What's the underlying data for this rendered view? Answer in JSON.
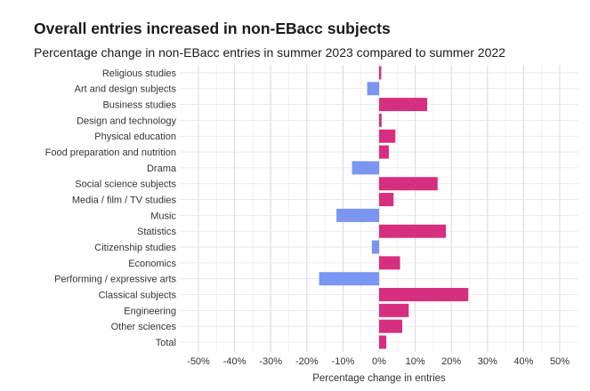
{
  "chart_data": {
    "type": "bar",
    "orientation": "horizontal",
    "title": "Overall entries increased in non-EBacc subjects",
    "subtitle": "Percentage change in non-EBacc entries in summer 2023 compared to summer 2022",
    "xlabel": "Percentage change in entries",
    "ylabel": "",
    "xlim": [
      -50,
      50
    ],
    "xticks": [
      -50,
      -40,
      -30,
      -20,
      -10,
      0,
      10,
      20,
      30,
      40,
      50
    ],
    "xtick_labels": [
      "-50%",
      "-40%",
      "-30%",
      "-20%",
      "-10%",
      "0%",
      "10%",
      "20%",
      "30%",
      "40%",
      "50%"
    ],
    "grid": true,
    "colors": {
      "positive": "#d62f7f",
      "negative": "#7b96f0"
    },
    "categories": [
      "Religious studies",
      "Art and design subjects",
      "Business studies",
      "Design and technology",
      "Physical education",
      "Food preparation and nutrition",
      "Drama",
      "Social science subjects",
      "Media / film / TV studies",
      "Music",
      "Statistics",
      "Citizenship studies",
      "Economics",
      "Performing / expressive arts",
      "Classical subjects",
      "Engineering",
      "Other sciences",
      "Total"
    ],
    "values": [
      0.6,
      -3.3,
      13.3,
      0.7,
      4.5,
      2.7,
      -7.5,
      16.2,
      4.0,
      -11.8,
      18.5,
      -2.0,
      5.8,
      -16.6,
      24.7,
      8.2,
      6.4,
      2.0
    ]
  }
}
